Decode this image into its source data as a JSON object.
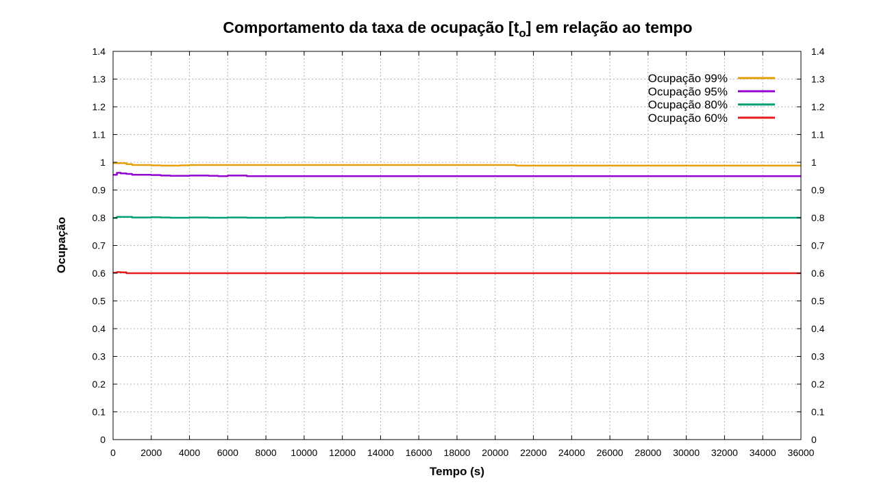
{
  "chart_data": {
    "type": "line",
    "title_main": "Comportamento da taxa de ocupação [t",
    "title_sub": "o",
    "title_end": "] em relação ao tempo",
    "xlabel": "Tempo (s)",
    "ylabel": "Ocupação",
    "xlim": [
      0,
      36000
    ],
    "ylim": [
      0,
      1.4
    ],
    "x_ticks": [
      0,
      2000,
      4000,
      6000,
      8000,
      10000,
      12000,
      14000,
      16000,
      18000,
      20000,
      22000,
      24000,
      26000,
      28000,
      30000,
      32000,
      34000,
      36000
    ],
    "y_ticks": [
      0,
      0.1,
      0.2,
      0.3,
      0.4,
      0.5,
      0.6,
      0.7,
      0.8,
      0.9,
      1,
      1.1,
      1.2,
      1.3,
      1.4
    ],
    "y_tick_labels": [
      "0",
      "0.1",
      "0.2",
      "0.3",
      "0.4",
      "0.5",
      "0.6",
      "0.7",
      "0.8",
      "0.9",
      "1",
      "1.1",
      "1.2",
      "1.3",
      "1.4"
    ],
    "grid": true,
    "secondary_y_axis": true,
    "legend_position": "top-right",
    "series": [
      {
        "name": "Ocupação 99%",
        "color": "#e69f00",
        "x": [
          0,
          300,
          700,
          1000,
          1500,
          2000,
          2500,
          3000,
          3500,
          4000,
          6000,
          10000,
          15000,
          20000,
          21000,
          21100,
          26000,
          30000,
          36000
        ],
        "y": [
          0.997,
          0.997,
          0.993,
          0.99,
          0.99,
          0.989,
          0.988,
          0.988,
          0.989,
          0.99,
          0.99,
          0.99,
          0.99,
          0.99,
          0.99,
          0.988,
          0.988,
          0.988,
          0.988
        ]
      },
      {
        "name": "Ocupação 95%",
        "color": "#9400d3",
        "x": [
          0,
          200,
          400,
          700,
          1000,
          1500,
          2000,
          2500,
          3000,
          3500,
          4000,
          5000,
          5500,
          6000,
          6500,
          7000,
          8000,
          12000,
          20000,
          36000
        ],
        "y": [
          0.955,
          0.962,
          0.96,
          0.958,
          0.955,
          0.955,
          0.954,
          0.952,
          0.951,
          0.951,
          0.952,
          0.951,
          0.95,
          0.952,
          0.952,
          0.95,
          0.95,
          0.95,
          0.95,
          0.95
        ]
      },
      {
        "name": "Ocupação 80%",
        "color": "#009e73",
        "x": [
          0,
          200,
          500,
          1000,
          1500,
          2000,
          2500,
          3000,
          4000,
          5000,
          6000,
          7000,
          8000,
          9000,
          10000,
          10500,
          14000,
          20000,
          36000
        ],
        "y": [
          0.799,
          0.803,
          0.803,
          0.801,
          0.801,
          0.802,
          0.801,
          0.8,
          0.801,
          0.8,
          0.801,
          0.8,
          0.8,
          0.801,
          0.801,
          0.8,
          0.8,
          0.8,
          0.8
        ]
      },
      {
        "name": "Ocupação 60%",
        "color": "#e41a1c",
        "x": [
          0,
          200,
          400,
          700,
          1000,
          2000,
          6000,
          12000,
          20000,
          36000
        ],
        "y": [
          0.602,
          0.604,
          0.603,
          0.6,
          0.6,
          0.6,
          0.6,
          0.6,
          0.6,
          0.6
        ]
      }
    ]
  }
}
